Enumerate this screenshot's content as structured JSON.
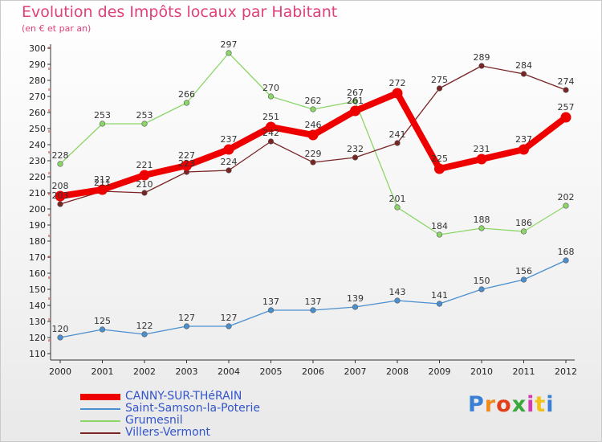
{
  "title": "Evolution des Impôts locaux par Habitant",
  "subtitle": "(en € et par an)",
  "logo": "Proxiti",
  "chart_data": {
    "type": "line",
    "title": "Evolution des Impôts locaux par Habitant",
    "subtitle": "(en € et par an)",
    "x": [
      "2000",
      "2001",
      "2002",
      "2003",
      "2004",
      "2005",
      "2006",
      "2007",
      "2008",
      "2009",
      "2010",
      "2011",
      "2012"
    ],
    "ylim": [
      110,
      300
    ],
    "yticks": [
      110,
      120,
      130,
      140,
      150,
      160,
      170,
      180,
      190,
      200,
      210,
      220,
      230,
      240,
      250,
      260,
      270,
      280,
      290,
      300
    ],
    "grid": false,
    "legend_position": "bottom-left",
    "series": [
      {
        "name": "CANNY-SUR-THéRAIN",
        "color": "#ee0000",
        "values": [
          208,
          212,
          221,
          227,
          237,
          251,
          246,
          261,
          272,
          225,
          231,
          237,
          257
        ]
      },
      {
        "name": "Saint-Samson-la-Poterie",
        "color": "#4a8fd0",
        "values": [
          120,
          125,
          122,
          127,
          127,
          137,
          137,
          139,
          143,
          141,
          150,
          156,
          168
        ]
      },
      {
        "name": "Grumesnil",
        "color": "#8cd668",
        "values": [
          228,
          253,
          253,
          266,
          297,
          270,
          262,
          267,
          201,
          184,
          188,
          186,
          202
        ]
      },
      {
        "name": "Villers-Vermont",
        "color": "#7a2424",
        "values": [
          203,
          211,
          210,
          223,
          224,
          242,
          229,
          232,
          241,
          275,
          289,
          284,
          274
        ]
      }
    ]
  }
}
